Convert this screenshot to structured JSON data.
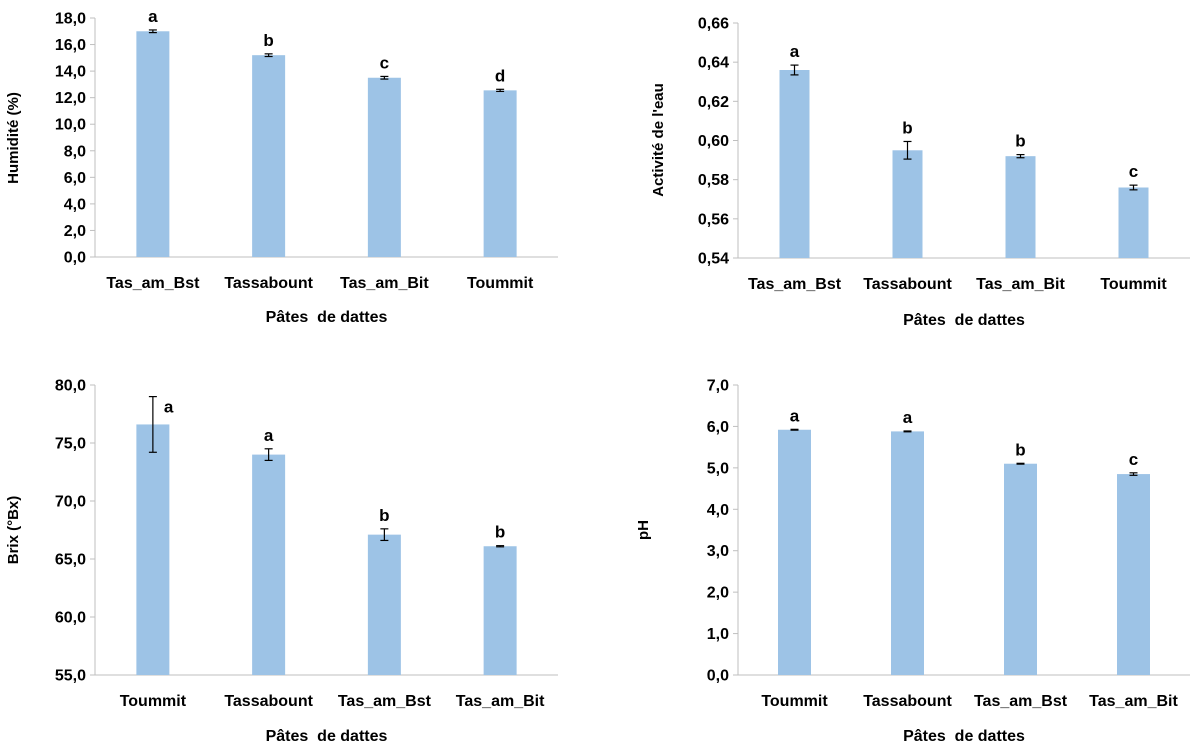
{
  "colors": {
    "bar": "#9dc3e6",
    "axis": "#bfbfbf",
    "text": "#000000"
  },
  "chart_data": [
    {
      "type": "bar",
      "title": "",
      "xlabel": "Pâtes  de dattes",
      "ylabel": "Humidité (%)",
      "ylim": [
        0,
        18
      ],
      "yticks": [
        0,
        2,
        4,
        6,
        8,
        10,
        12,
        14,
        16,
        18
      ],
      "tick_format": "0,0",
      "categories": [
        "Tas_am_Bst",
        "Tassabount",
        "Tas_am_Bit",
        "Toummit"
      ],
      "values": [
        17.0,
        15.2,
        13.5,
        12.55
      ],
      "errors": [
        0.1,
        0.1,
        0.1,
        0.08
      ],
      "letters": [
        "a",
        "b",
        "c",
        "d"
      ],
      "grid": false
    },
    {
      "type": "bar",
      "title": "",
      "xlabel": "Pâtes  de dattes",
      "ylabel": "Activité de l'eau",
      "ylim": [
        0.54,
        0.66
      ],
      "yticks": [
        0.54,
        0.56,
        0.58,
        0.6,
        0.62,
        0.64,
        0.66
      ],
      "tick_format": "0,00",
      "categories": [
        "Tas_am_Bst",
        "Tassabount",
        "Tas_am_Bit",
        "Toummit"
      ],
      "values": [
        0.636,
        0.595,
        0.592,
        0.576
      ],
      "errors": [
        0.0025,
        0.0045,
        0.0008,
        0.0012
      ],
      "letters": [
        "a",
        "b",
        "b",
        "c"
      ],
      "grid": false
    },
    {
      "type": "bar",
      "title": "",
      "xlabel": "Pâtes  de dattes",
      "ylabel": "Brix (°Bx)",
      "ylim": [
        55,
        80
      ],
      "yticks": [
        55,
        60,
        65,
        70,
        75,
        80
      ],
      "tick_format": "0,0",
      "categories": [
        "Toummit",
        "Tassabount",
        "Tas_am_Bst",
        "Tas_am_Bit"
      ],
      "values": [
        76.6,
        74.0,
        67.1,
        66.1
      ],
      "errors": [
        2.4,
        0.5,
        0.5,
        0.05
      ],
      "letters": [
        "a",
        "a",
        "b",
        "b"
      ],
      "grid": false
    },
    {
      "type": "bar",
      "title": "",
      "xlabel": "Pâtes  de dattes",
      "ylabel": "pH",
      "ylim": [
        0,
        7
      ],
      "yticks": [
        0,
        1,
        2,
        3,
        4,
        5,
        6,
        7
      ],
      "tick_format": "0,0",
      "categories": [
        "Toummit",
        "Tassabount",
        "Tas_am_Bst",
        "Tas_am_Bit"
      ],
      "values": [
        5.92,
        5.88,
        5.1,
        4.85
      ],
      "errors": [
        0.01,
        0.01,
        0.01,
        0.03
      ],
      "letters": [
        "a",
        "a",
        "b",
        "c"
      ],
      "grid": false
    }
  ]
}
